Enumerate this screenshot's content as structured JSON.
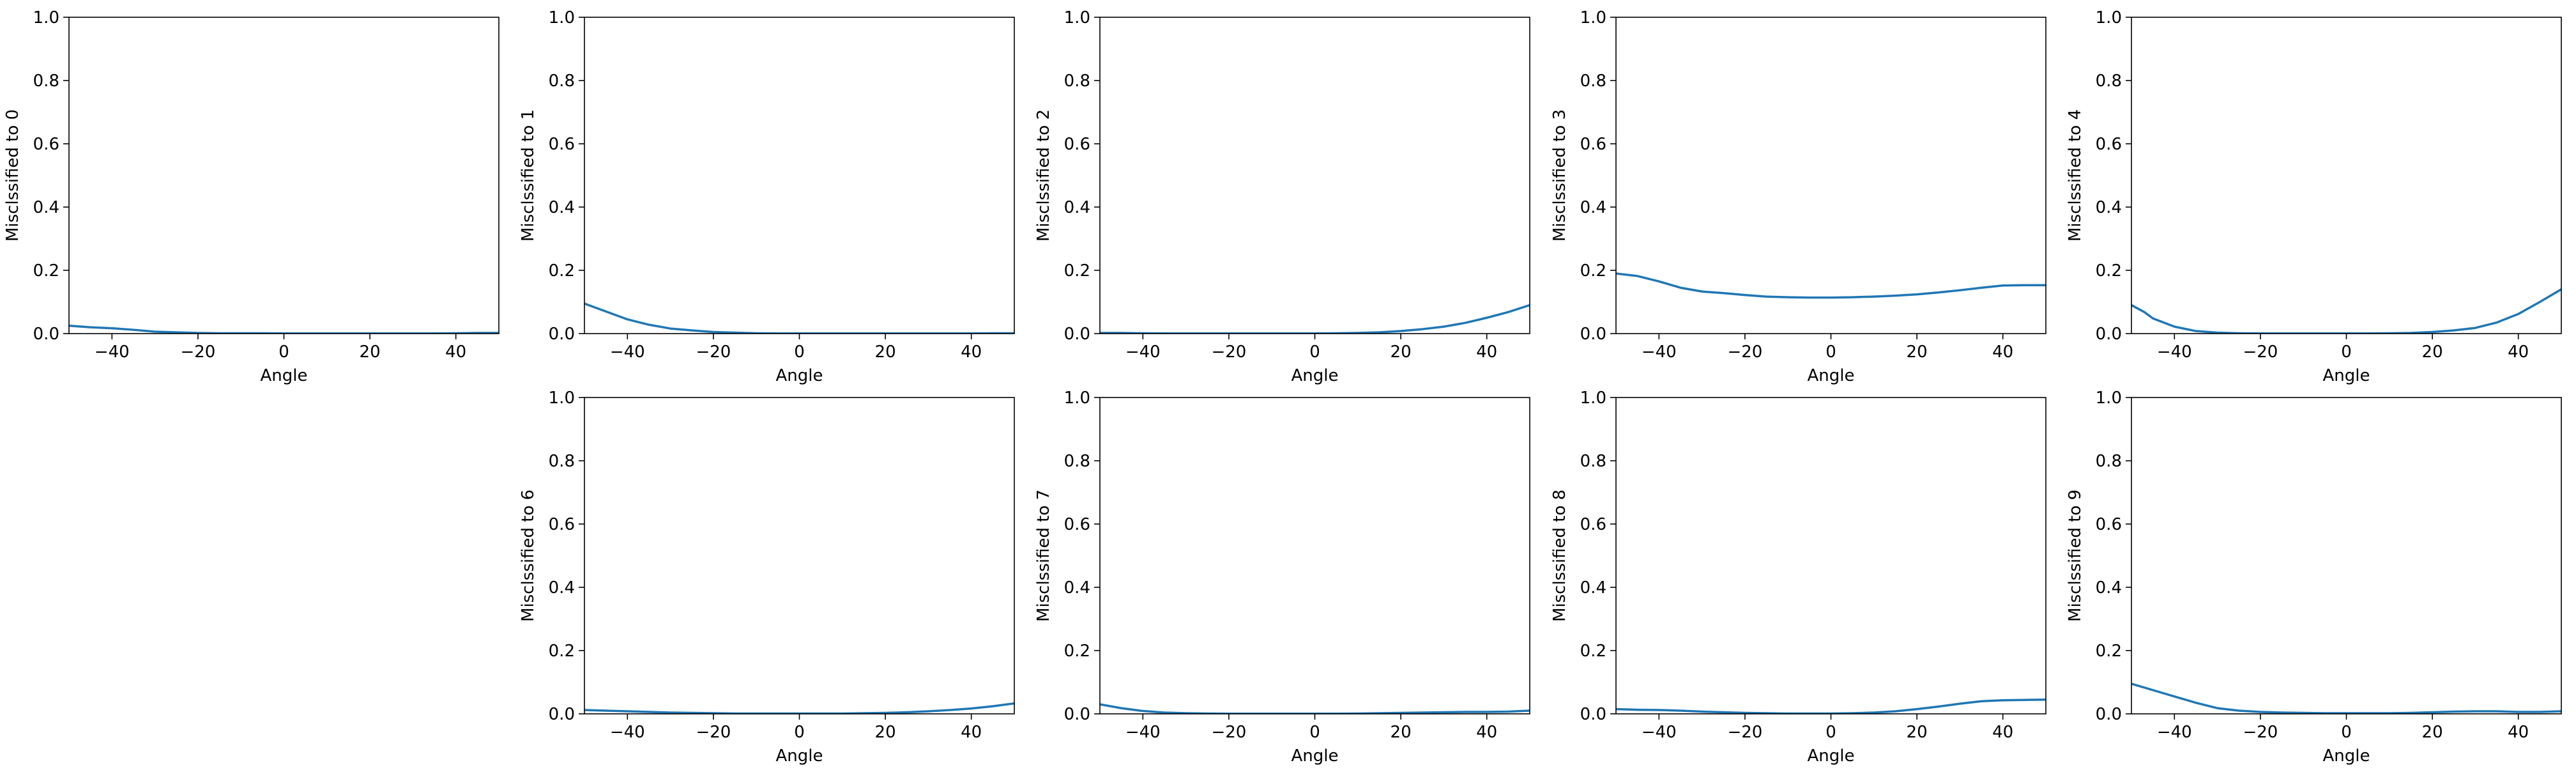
{
  "chart_data": [
    {
      "type": "line",
      "xlabel": "Angle",
      "ylabel": "Misclssified to 0",
      "xlim": [
        -50,
        50
      ],
      "ylim": [
        0,
        1
      ],
      "xticks": [
        -40,
        -20,
        0,
        20,
        40
      ],
      "yticks": [
        0.0,
        0.2,
        0.4,
        0.6,
        0.8,
        1.0
      ],
      "xtick_labels": [
        "−40",
        "−20",
        "0",
        "20",
        "40"
      ],
      "ytick_labels": [
        "0.0",
        "0.2",
        "0.4",
        "0.6",
        "0.8",
        "1.0"
      ],
      "series": [
        {
          "x": [
            -50,
            -45,
            -40,
            -35,
            -30,
            -25,
            -20,
            -15,
            -10,
            -5,
            0,
            5,
            10,
            15,
            20,
            25,
            30,
            35,
            40,
            45,
            50
          ],
          "y": [
            0.025,
            0.02,
            0.017,
            0.012,
            0.006,
            0.004,
            0.002,
            0.001,
            0.001,
            0.001,
            0.0005,
            0.0005,
            0.0005,
            0.0005,
            0.0005,
            0.0005,
            0.0005,
            0.0005,
            0.001,
            0.002,
            0.002
          ]
        }
      ]
    },
    {
      "type": "line",
      "xlabel": "Angle",
      "ylabel": "Misclssified to 1",
      "xlim": [
        -50,
        50
      ],
      "ylim": [
        0,
        1
      ],
      "xticks": [
        -40,
        -20,
        0,
        20,
        40
      ],
      "yticks": [
        0.0,
        0.2,
        0.4,
        0.6,
        0.8,
        1.0
      ],
      "xtick_labels": [
        "−40",
        "−20",
        "0",
        "20",
        "40"
      ],
      "ytick_labels": [
        "0.0",
        "0.2",
        "0.4",
        "0.6",
        "0.8",
        "1.0"
      ],
      "series": [
        {
          "x": [
            -50,
            -45,
            -40,
            -35,
            -30,
            -25,
            -20,
            -15,
            -10,
            -5,
            0,
            5,
            10,
            15,
            20,
            25,
            30,
            35,
            40,
            45,
            50
          ],
          "y": [
            0.095,
            0.07,
            0.045,
            0.028,
            0.016,
            0.01,
            0.005,
            0.003,
            0.001,
            0.0005,
            0.0005,
            0.0005,
            0.0005,
            0.0005,
            0.0005,
            0.0005,
            0.0005,
            0.0005,
            0.0005,
            0.001,
            0.001
          ]
        }
      ]
    },
    {
      "type": "line",
      "xlabel": "Angle",
      "ylabel": "Misclssified to 2",
      "xlim": [
        -50,
        50
      ],
      "ylim": [
        0,
        1
      ],
      "xticks": [
        -40,
        -20,
        0,
        20,
        40
      ],
      "yticks": [
        0.0,
        0.2,
        0.4,
        0.6,
        0.8,
        1.0
      ],
      "xtick_labels": [
        "−40",
        "−20",
        "0",
        "20",
        "40"
      ],
      "ytick_labels": [
        "0.0",
        "0.2",
        "0.4",
        "0.6",
        "0.8",
        "1.0"
      ],
      "series": [
        {
          "x": [
            -50,
            -45,
            -40,
            -35,
            -30,
            -25,
            -20,
            -15,
            -10,
            -5,
            0,
            5,
            10,
            15,
            20,
            25,
            30,
            35,
            40,
            45,
            50
          ],
          "y": [
            0.002,
            0.002,
            0.001,
            0.0005,
            0.0005,
            0.0005,
            0.0005,
            0.0005,
            0.0005,
            0.0005,
            0.0005,
            0.001,
            0.002,
            0.004,
            0.008,
            0.014,
            0.022,
            0.034,
            0.05,
            0.068,
            0.09
          ]
        }
      ]
    },
    {
      "type": "line",
      "xlabel": "Angle",
      "ylabel": "Misclssified to 3",
      "xlim": [
        -50,
        50
      ],
      "ylim": [
        0,
        1
      ],
      "xticks": [
        -40,
        -20,
        0,
        20,
        40
      ],
      "yticks": [
        0.0,
        0.2,
        0.4,
        0.6,
        0.8,
        1.0
      ],
      "xtick_labels": [
        "−40",
        "−20",
        "0",
        "20",
        "40"
      ],
      "ytick_labels": [
        "0.0",
        "0.2",
        "0.4",
        "0.6",
        "0.8",
        "1.0"
      ],
      "series": [
        {
          "x": [
            -50,
            -45,
            -40,
            -35,
            -30,
            -25,
            -20,
            -15,
            -10,
            -5,
            0,
            5,
            10,
            15,
            20,
            25,
            30,
            35,
            40,
            45,
            50
          ],
          "y": [
            0.19,
            0.182,
            0.165,
            0.145,
            0.133,
            0.128,
            0.122,
            0.117,
            0.115,
            0.114,
            0.114,
            0.115,
            0.117,
            0.12,
            0.124,
            0.13,
            0.137,
            0.145,
            0.152,
            0.153,
            0.153
          ]
        }
      ]
    },
    {
      "type": "line",
      "xlabel": "Angle",
      "ylabel": "Misclssified to 4",
      "xlim": [
        -50,
        50
      ],
      "ylim": [
        0,
        1
      ],
      "xticks": [
        -40,
        -20,
        0,
        20,
        40
      ],
      "yticks": [
        0.0,
        0.2,
        0.4,
        0.6,
        0.8,
        1.0
      ],
      "xtick_labels": [
        "−40",
        "−20",
        "0",
        "20",
        "40"
      ],
      "ytick_labels": [
        "0.0",
        "0.2",
        "0.4",
        "0.6",
        "0.8",
        "1.0"
      ],
      "series": [
        {
          "x": [
            -50,
            -47,
            -45,
            -40,
            -35,
            -30,
            -25,
            -20,
            -15,
            -10,
            -5,
            0,
            5,
            10,
            15,
            20,
            25,
            30,
            35,
            40,
            45,
            50
          ],
          "y": [
            0.09,
            0.068,
            0.048,
            0.022,
            0.008,
            0.003,
            0.001,
            0.0005,
            0.0005,
            0.0005,
            0.0005,
            0.0005,
            0.0005,
            0.001,
            0.002,
            0.005,
            0.01,
            0.018,
            0.035,
            0.062,
            0.1,
            0.14
          ]
        }
      ]
    },
    {
      "type": "line",
      "xlabel": "Angle",
      "ylabel": "Misclssified to 6",
      "xlim": [
        -50,
        50
      ],
      "ylim": [
        0,
        1
      ],
      "xticks": [
        -40,
        -20,
        0,
        20,
        40
      ],
      "yticks": [
        0.0,
        0.2,
        0.4,
        0.6,
        0.8,
        1.0
      ],
      "xtick_labels": [
        "−40",
        "−20",
        "0",
        "20",
        "40"
      ],
      "ytick_labels": [
        "0.0",
        "0.2",
        "0.4",
        "0.6",
        "0.8",
        "1.0"
      ],
      "series": [
        {
          "x": [
            -50,
            -45,
            -40,
            -35,
            -30,
            -25,
            -20,
            -15,
            -10,
            -5,
            0,
            5,
            10,
            15,
            20,
            25,
            30,
            35,
            40,
            45,
            50
          ],
          "y": [
            0.012,
            0.01,
            0.008,
            0.006,
            0.004,
            0.003,
            0.002,
            0.001,
            0.001,
            0.001,
            0.001,
            0.001,
            0.001,
            0.002,
            0.003,
            0.005,
            0.008,
            0.012,
            0.017,
            0.024,
            0.033
          ]
        }
      ]
    },
    {
      "type": "line",
      "xlabel": "Angle",
      "ylabel": "Misclssified to 7",
      "xlim": [
        -50,
        50
      ],
      "ylim": [
        0,
        1
      ],
      "xticks": [
        -40,
        -20,
        0,
        20,
        40
      ],
      "yticks": [
        0.0,
        0.2,
        0.4,
        0.6,
        0.8,
        1.0
      ],
      "xtick_labels": [
        "−40",
        "−20",
        "0",
        "20",
        "40"
      ],
      "ytick_labels": [
        "0.0",
        "0.2",
        "0.4",
        "0.6",
        "0.8",
        "1.0"
      ],
      "series": [
        {
          "x": [
            -50,
            -45,
            -40,
            -35,
            -30,
            -25,
            -20,
            -15,
            -10,
            -5,
            0,
            5,
            10,
            15,
            20,
            25,
            30,
            35,
            40,
            45,
            50
          ],
          "y": [
            0.03,
            0.018,
            0.009,
            0.004,
            0.002,
            0.001,
            0.0005,
            0.0005,
            0.0005,
            0.0005,
            0.0005,
            0.0005,
            0.001,
            0.002,
            0.003,
            0.004,
            0.005,
            0.006,
            0.006,
            0.007,
            0.01
          ]
        }
      ]
    },
    {
      "type": "line",
      "xlabel": "Angle",
      "ylabel": "Misclssified to 8",
      "xlim": [
        -50,
        50
      ],
      "ylim": [
        0,
        1
      ],
      "xticks": [
        -40,
        -20,
        0,
        20,
        40
      ],
      "yticks": [
        0.0,
        0.2,
        0.4,
        0.6,
        0.8,
        1.0
      ],
      "xtick_labels": [
        "−40",
        "−20",
        "0",
        "20",
        "40"
      ],
      "ytick_labels": [
        "0.0",
        "0.2",
        "0.4",
        "0.6",
        "0.8",
        "1.0"
      ],
      "series": [
        {
          "x": [
            -50,
            -45,
            -40,
            -35,
            -30,
            -25,
            -20,
            -15,
            -10,
            -5,
            0,
            5,
            10,
            15,
            20,
            25,
            30,
            35,
            40,
            45,
            50
          ],
          "y": [
            0.015,
            0.013,
            0.012,
            0.01,
            0.007,
            0.005,
            0.003,
            0.002,
            0.001,
            0.001,
            0.001,
            0.002,
            0.004,
            0.008,
            0.015,
            0.023,
            0.032,
            0.04,
            0.043,
            0.044,
            0.045
          ]
        }
      ]
    },
    {
      "type": "line",
      "xlabel": "Angle",
      "ylabel": "Misclssified to 9",
      "xlim": [
        -50,
        50
      ],
      "ylim": [
        0,
        1
      ],
      "xticks": [
        -40,
        -20,
        0,
        20,
        40
      ],
      "yticks": [
        0.0,
        0.2,
        0.4,
        0.6,
        0.8,
        1.0
      ],
      "xtick_labels": [
        "−40",
        "−20",
        "0",
        "20",
        "40"
      ],
      "ytick_labels": [
        "0.0",
        "0.2",
        "0.4",
        "0.6",
        "0.8",
        "1.0"
      ],
      "series": [
        {
          "x": [
            -50,
            -45,
            -40,
            -35,
            -30,
            -25,
            -20,
            -15,
            -10,
            -5,
            0,
            5,
            10,
            15,
            20,
            25,
            30,
            35,
            40,
            45,
            50
          ],
          "y": [
            0.095,
            0.075,
            0.055,
            0.035,
            0.018,
            0.01,
            0.006,
            0.004,
            0.003,
            0.002,
            0.002,
            0.002,
            0.002,
            0.003,
            0.005,
            0.007,
            0.008,
            0.008,
            0.006,
            0.006,
            0.008
          ]
        }
      ]
    }
  ],
  "colors": {
    "line": "#1f77b4",
    "axes": "#000000",
    "background": "#ffffff"
  }
}
